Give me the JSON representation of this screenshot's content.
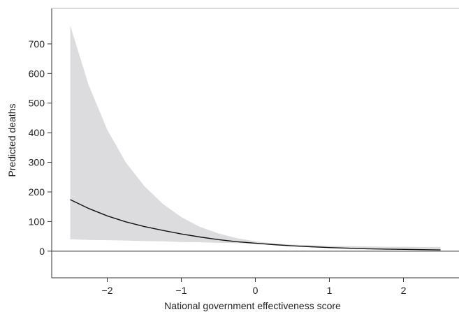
{
  "chart_data": {
    "type": "area",
    "title": "",
    "xlabel": "National government effectiveness score",
    "ylabel": "Predicted deaths",
    "xlim": [
      -2.75,
      2.75
    ],
    "ylim": [
      -90,
      820
    ],
    "xticks": [
      -2,
      -1,
      0,
      1,
      2
    ],
    "xtick_labels": [
      "−2",
      "−1",
      "0",
      "1",
      "2"
    ],
    "yticks": [
      0,
      100,
      200,
      300,
      400,
      500,
      600,
      700
    ],
    "ytick_labels": [
      "0",
      "100",
      "200",
      "300",
      "400",
      "500",
      "600",
      "700"
    ],
    "grid": false,
    "zero_line": true,
    "colors": {
      "band": "#dcdcde",
      "line": "#111111",
      "axis": "#333333"
    },
    "series": [
      {
        "x": [
          -2.5,
          -2.25,
          -2.0,
          -1.75,
          -1.5,
          -1.25,
          -1.0,
          -0.75,
          -0.5,
          -0.25,
          0.0,
          0.25,
          0.5,
          0.75,
          1.0,
          1.25,
          1.5,
          1.75,
          2.0,
          2.25,
          2.5
        ],
        "y": [
          174,
          144,
          119,
          99,
          83,
          70,
          58,
          48,
          39,
          32,
          27,
          22,
          18,
          15,
          12,
          10,
          8,
          7,
          6,
          5,
          4
        ]
      },
      {
        "x": [
          -2.5,
          -2.25,
          -2.0,
          -1.75,
          -1.5,
          -1.25,
          -1.0,
          -0.75,
          -0.5,
          -0.25,
          0.0,
          0.25,
          0.5,
          0.75,
          1.0,
          1.25,
          1.5,
          1.75,
          2.0,
          2.25,
          2.5
        ],
        "lower": [
          40,
          38,
          37,
          36,
          34,
          33,
          31,
          30,
          28,
          27,
          25,
          21,
          17,
          14,
          11,
          9,
          7,
          6,
          5,
          4,
          3
        ],
        "upper": [
          762,
          560,
          410,
          300,
          220,
          160,
          115,
          82,
          60,
          44,
          33,
          26,
          22,
          20,
          18,
          17,
          16,
          15,
          15,
          14,
          14
        ]
      }
    ]
  }
}
